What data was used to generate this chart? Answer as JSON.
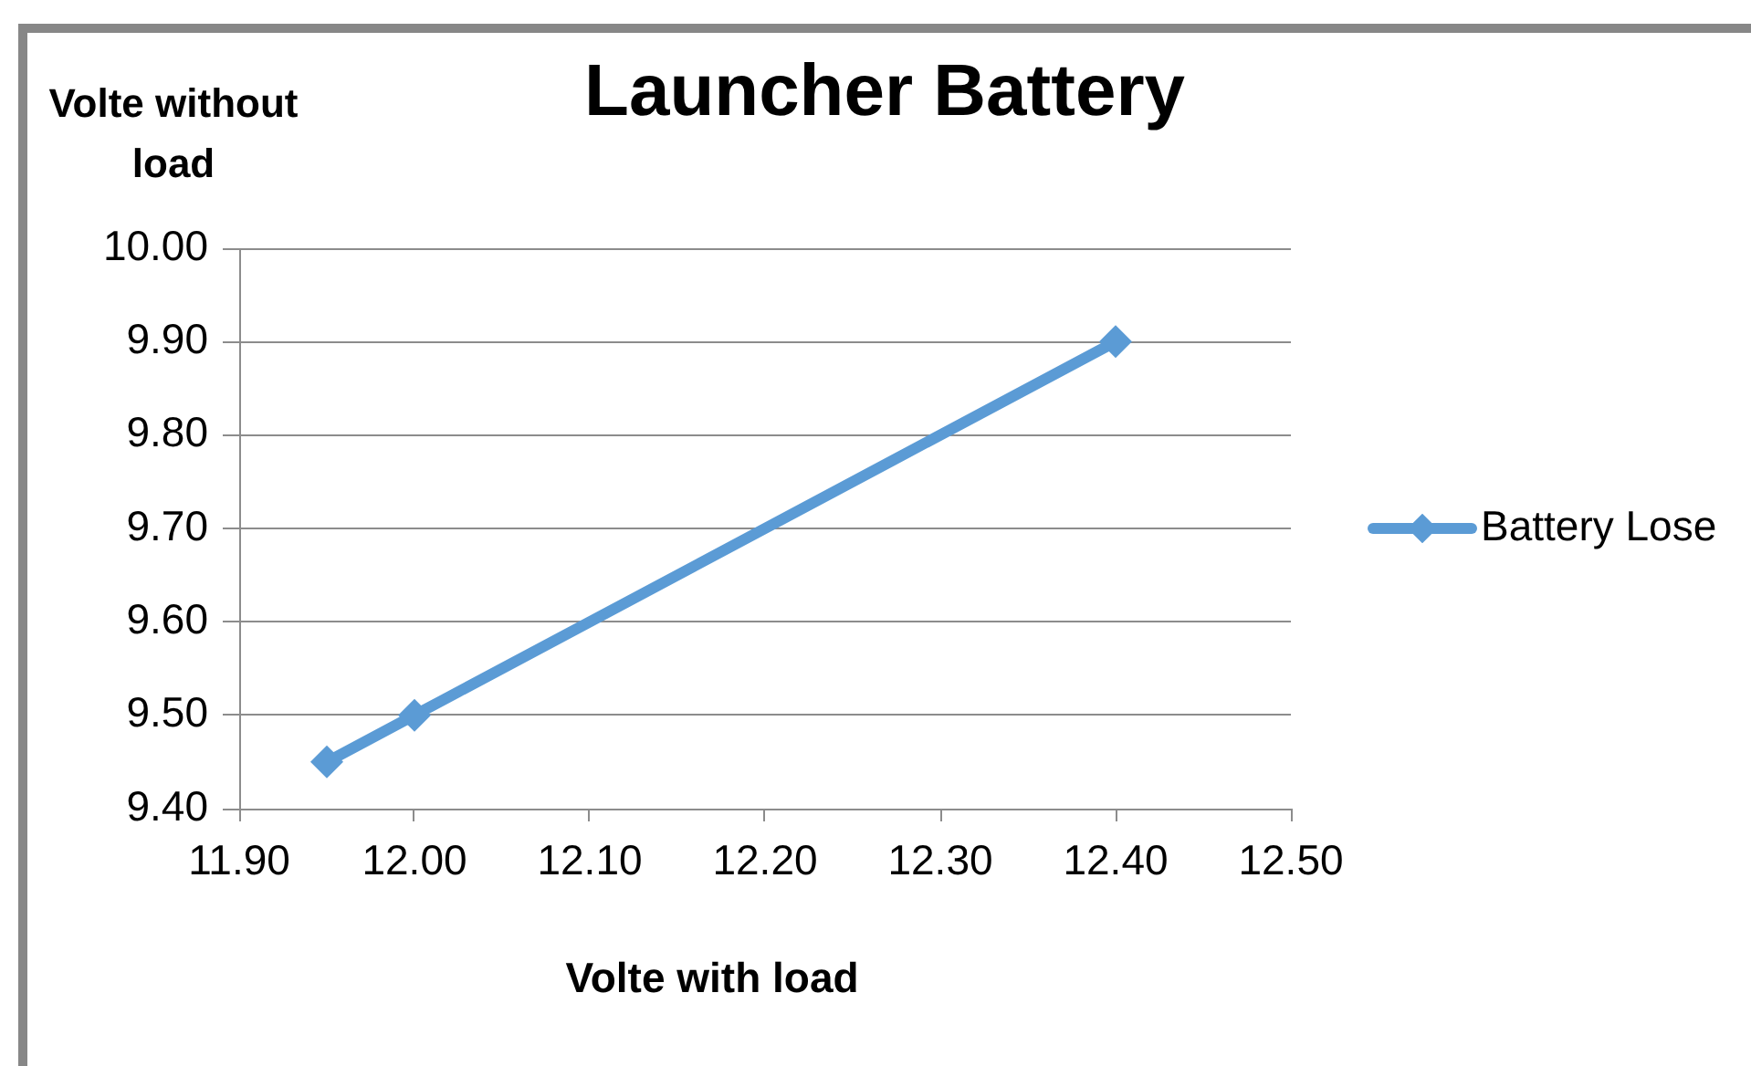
{
  "chart_data": {
    "type": "line",
    "title": "Launcher Battery",
    "xlabel": "Volte with load",
    "ylabel": "Volte without load",
    "x": [
      11.95,
      12.0,
      12.4
    ],
    "series": [
      {
        "name": "Battery Lose",
        "color": "#5b9bd5",
        "values": [
          9.45,
          9.5,
          9.9
        ]
      }
    ],
    "xlim": [
      11.9,
      12.5
    ],
    "xticks": [
      {
        "value": 11.9,
        "label": "11.90"
      },
      {
        "value": 12.0,
        "label": "12.00"
      },
      {
        "value": 12.1,
        "label": "12.10"
      },
      {
        "value": 12.2,
        "label": "12.20"
      },
      {
        "value": 12.3,
        "label": "12.30"
      },
      {
        "value": 12.4,
        "label": "12.40"
      },
      {
        "value": 12.5,
        "label": "12.50"
      }
    ],
    "ylim": [
      9.4,
      10.0
    ],
    "yticks": [
      {
        "value": 9.4,
        "label": "9.40"
      },
      {
        "value": 9.5,
        "label": "9.50"
      },
      {
        "value": 9.6,
        "label": "9.60"
      },
      {
        "value": 9.7,
        "label": "9.70"
      },
      {
        "value": 9.8,
        "label": "9.80"
      },
      {
        "value": 9.9,
        "label": "9.90"
      },
      {
        "value": 10.0,
        "label": "10.00"
      }
    ],
    "grid": "y",
    "legend": "right",
    "marker": "diamond",
    "line_style": "solid"
  }
}
